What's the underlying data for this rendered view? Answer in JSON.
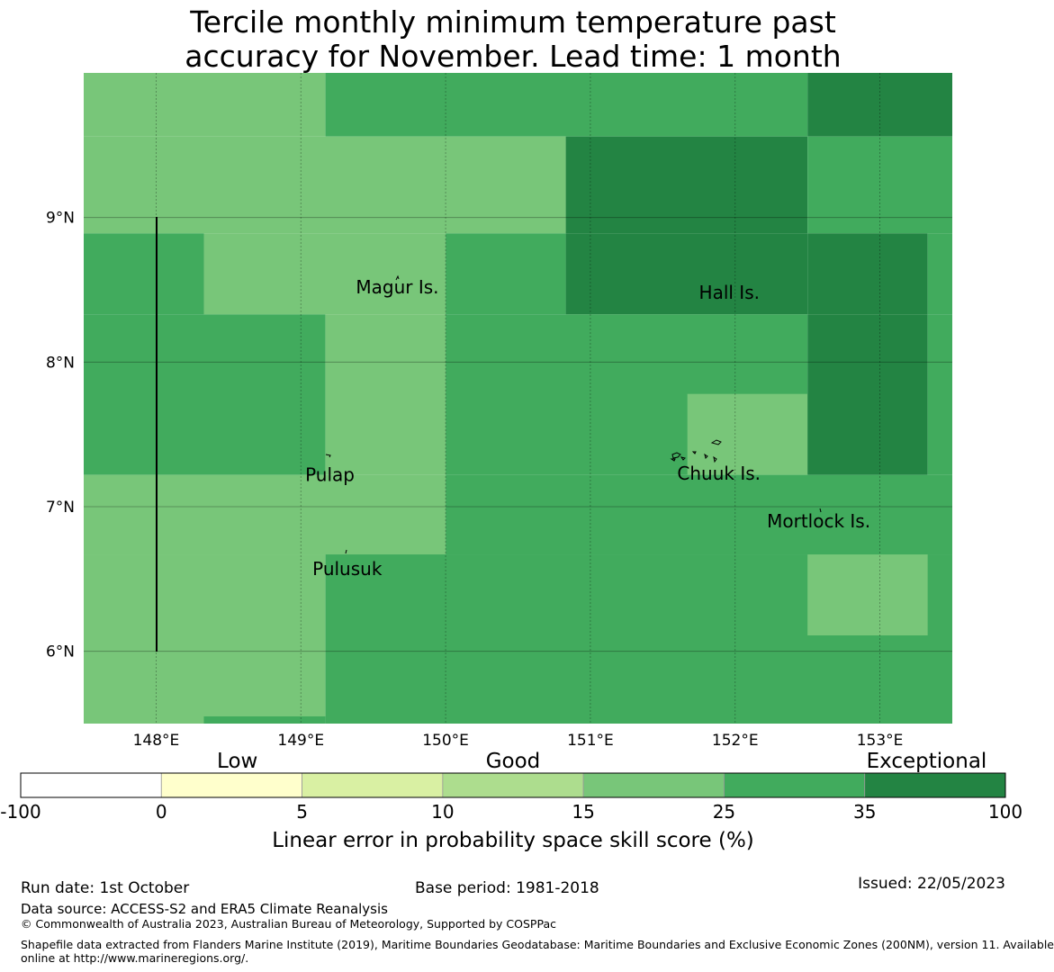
{
  "title": {
    "line1": "Tercile monthly minimum temperature past",
    "line2": "accuracy for November. Lead time: 1 month"
  },
  "map": {
    "lon_range": [
      147.5,
      153.5
    ],
    "lat_range": [
      5.5,
      10.0
    ],
    "lon_ticks": [
      {
        "value": 148,
        "label": "148°E"
      },
      {
        "value": 149,
        "label": "149°E"
      },
      {
        "value": 150,
        "label": "150°E"
      },
      {
        "value": 151,
        "label": "151°E"
      },
      {
        "value": 152,
        "label": "152°E"
      },
      {
        "value": 153,
        "label": "153°E"
      }
    ],
    "lat_ticks": [
      {
        "value": 9,
        "label": "9°N"
      },
      {
        "value": 8,
        "label": "8°N"
      },
      {
        "value": 7,
        "label": "7°N"
      },
      {
        "value": 6,
        "label": "6°N"
      }
    ],
    "cells": [
      {
        "lon": [
          147.5,
          149.17
        ],
        "lat": [
          9.56,
          10.0
        ],
        "cls": "c15"
      },
      {
        "lon": [
          149.17,
          152.5
        ],
        "lat": [
          9.56,
          10.0
        ],
        "cls": "c25"
      },
      {
        "lon": [
          152.5,
          153.5
        ],
        "lat": [
          9.56,
          10.0
        ],
        "cls": "c35"
      },
      {
        "lon": [
          147.5,
          150.83
        ],
        "lat": [
          8.89,
          9.56
        ],
        "cls": "c15"
      },
      {
        "lon": [
          150.83,
          152.5
        ],
        "lat": [
          8.89,
          9.56
        ],
        "cls": "c35"
      },
      {
        "lon": [
          152.5,
          153.5
        ],
        "lat": [
          8.89,
          9.56
        ],
        "cls": "c25"
      },
      {
        "lon": [
          147.5,
          148.33
        ],
        "lat": [
          8.33,
          8.89
        ],
        "cls": "c25"
      },
      {
        "lon": [
          148.33,
          150.0
        ],
        "lat": [
          8.33,
          8.89
        ],
        "cls": "c15"
      },
      {
        "lon": [
          150.0,
          150.83
        ],
        "lat": [
          8.33,
          8.89
        ],
        "cls": "c25"
      },
      {
        "lon": [
          150.83,
          152.5
        ],
        "lat": [
          8.33,
          8.89
        ],
        "cls": "c35"
      },
      {
        "lon": [
          152.5,
          153.33
        ],
        "lat": [
          8.33,
          8.89
        ],
        "cls": "c35"
      },
      {
        "lon": [
          153.33,
          153.5
        ],
        "lat": [
          8.33,
          8.89
        ],
        "cls": "c25"
      },
      {
        "lon": [
          147.5,
          149.17
        ],
        "lat": [
          7.22,
          8.33
        ],
        "cls": "c25"
      },
      {
        "lon": [
          149.17,
          150.0
        ],
        "lat": [
          7.22,
          8.33
        ],
        "cls": "c15"
      },
      {
        "lon": [
          150.0,
          152.5
        ],
        "lat": [
          7.22,
          8.33
        ],
        "cls": "c25"
      },
      {
        "lon": [
          151.67,
          152.5
        ],
        "lat": [
          7.22,
          7.78
        ],
        "cls": "c15"
      },
      {
        "lon": [
          152.5,
          153.33
        ],
        "lat": [
          7.22,
          8.33
        ],
        "cls": "c35"
      },
      {
        "lon": [
          153.33,
          153.5
        ],
        "lat": [
          7.22,
          8.33
        ],
        "cls": "c25"
      },
      {
        "lon": [
          147.5,
          150.0
        ],
        "lat": [
          6.67,
          7.22
        ],
        "cls": "c15"
      },
      {
        "lon": [
          150.0,
          153.5
        ],
        "lat": [
          6.67,
          7.22
        ],
        "cls": "c25"
      },
      {
        "lon": [
          147.5,
          149.17
        ],
        "lat": [
          5.5,
          6.67
        ],
        "cls": "c15"
      },
      {
        "lon": [
          149.17,
          153.5
        ],
        "lat": [
          5.5,
          6.67
        ],
        "cls": "c25"
      },
      {
        "lon": [
          152.5,
          153.33
        ],
        "lat": [
          6.11,
          6.67
        ],
        "cls": "c15"
      },
      {
        "lon": [
          148.33,
          149.17
        ],
        "lat": [
          5.5,
          5.55
        ],
        "cls": "c25"
      }
    ],
    "places": [
      {
        "name": "Magur Is.",
        "lon": 149.38,
        "lat": 8.52
      },
      {
        "name": "Hall Is.",
        "lon": 151.75,
        "lat": 8.48
      },
      {
        "name": "Pulap",
        "lon": 149.03,
        "lat": 7.22
      },
      {
        "name": "Chuuk Is.",
        "lon": 151.6,
        "lat": 7.23
      },
      {
        "name": "Mortlock Is.",
        "lon": 152.22,
        "lat": 6.9
      },
      {
        "name": "Pulusuk",
        "lon": 149.08,
        "lat": 6.57
      }
    ]
  },
  "colorbar": {
    "categories": [
      {
        "label": "Low",
        "position": 0.22
      },
      {
        "label": "Good",
        "position": 0.5
      },
      {
        "label": "Exceptional",
        "position": 0.92
      }
    ],
    "bins": [
      {
        "from": "-100",
        "to": "0",
        "color": "#ffffff"
      },
      {
        "from": "0",
        "to": "5",
        "color": "#ffffcc"
      },
      {
        "from": "5",
        "to": "10",
        "color": "#d9f0a3"
      },
      {
        "from": "10",
        "to": "15",
        "color": "#addd8e"
      },
      {
        "from": "15",
        "to": "25",
        "color": "#78c679"
      },
      {
        "from": "25",
        "to": "35",
        "color": "#41ab5d"
      },
      {
        "from": "35",
        "to": "100",
        "color": "#238443"
      }
    ],
    "tick_labels": [
      "-100",
      "0",
      "5",
      "10",
      "15",
      "25",
      "35",
      "100"
    ],
    "title": "Linear error in probability space skill score (%)"
  },
  "colors": {
    "c15": "#78c679",
    "c25": "#41ab5d",
    "c35": "#238443"
  },
  "footer": {
    "run_date": "Run date: 1st October",
    "base_period": "Base period: 1981-2018",
    "issued": "Issued: 22/05/2023",
    "data_source": "Data source: ACCESS-S2 and ERA5 Climate Reanalysis",
    "copyright": "© Commonwealth of Australia 2023, Australian Bureau of Meteorology, Supported by COSPPac",
    "shapefile_line1": "Shapefile data extracted from Flanders Marine Institute (2019), Maritime Boundaries Geodatabase: Maritime Boundaries and Exclusive Economic Zones (200NM), version 11. Available",
    "shapefile_line2": "online at http://www.marineregions.org/."
  }
}
